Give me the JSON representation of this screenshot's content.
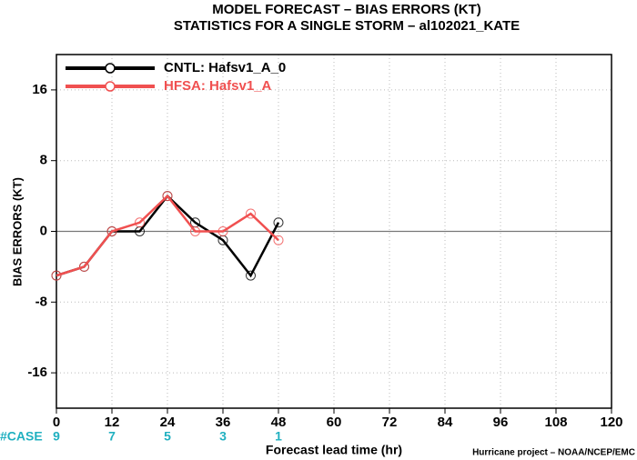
{
  "chart_data": {
    "type": "line",
    "title": "MODEL FORECAST – BIAS ERRORS (KT)",
    "subtitle": "STATISTICS FOR A SINGLE STORM – al102021_KATE",
    "xlabel": "Forecast lead time (hr)",
    "ylabel": "BIAS ERRORS (KT)",
    "x": [
      0,
      6,
      12,
      18,
      24,
      30,
      36,
      42,
      48
    ],
    "series": [
      {
        "name": "CNTL: Hafsv1_A_0",
        "color": "#000000",
        "values": [
          -5,
          -4,
          0,
          0,
          4,
          1,
          -1,
          -5,
          1
        ]
      },
      {
        "name": "HFSA: Hafsv1_A",
        "color": "#f05050",
        "values": [
          -5,
          -4,
          0,
          1,
          4,
          0,
          0,
          2,
          -1
        ]
      }
    ],
    "xlim": [
      0,
      120
    ],
    "xticks": [
      0,
      12,
      24,
      36,
      48,
      60,
      72,
      84,
      96,
      108,
      120
    ],
    "ylim": [
      -20,
      20
    ],
    "yticks": [
      -16,
      -8,
      0,
      8,
      16
    ],
    "grid": true,
    "legend": "upper left",
    "cases": {
      "label": "#CASE",
      "color": "#20b0c0",
      "x": [
        0,
        12,
        24,
        36,
        48
      ],
      "values": [
        9,
        7,
        5,
        3,
        1
      ]
    },
    "footer": "Hurricane project – NOAA/NCEP/EMC"
  }
}
